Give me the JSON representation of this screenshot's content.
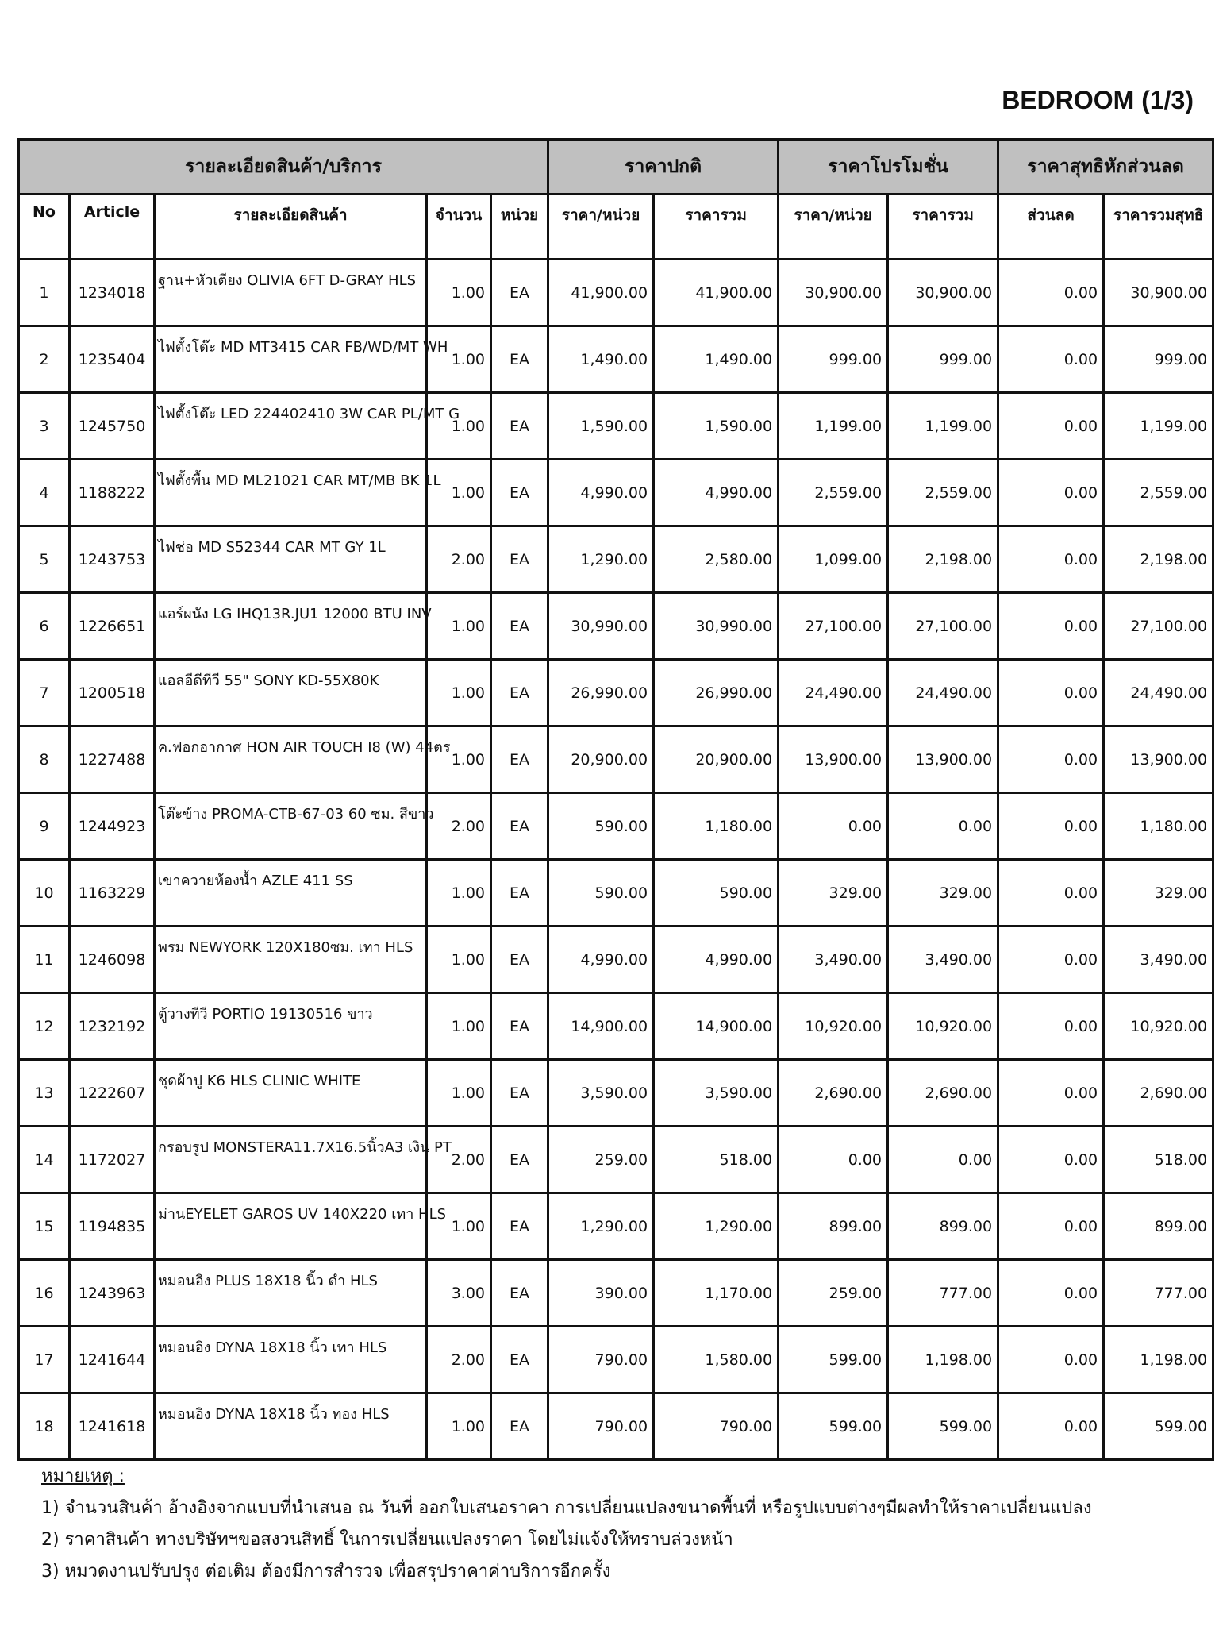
{
  "title": "BEDROOM (1/3)",
  "groups": [
    "รายละเอียดสินค้า/บริการ",
    "ราคาปกติ",
    "ราคาโปรโมชั่น",
    "ราคาสุทธิหักส่วนลด"
  ],
  "columns": [
    "No",
    "Article",
    "รายละเอียดสินค้า",
    "จำนวน",
    "หน่วย",
    "ราคา/หน่วย",
    "ราคารวม",
    "ราคา/หน่วย",
    "ราคารวม",
    "ส่วนลด",
    "ราคารวมสุทธิ"
  ],
  "rows": [
    [
      "1",
      "1234018",
      "ฐาน+หัวเตียง OLIVIA 6FT D-GRAY HLS",
      "1.00",
      "EA",
      "41,900.00",
      "41,900.00",
      "30,900.00",
      "30,900.00",
      "0.00",
      "30,900.00"
    ],
    [
      "2",
      "1235404",
      "ไฟตั้งโต๊ะ MD MT3415 CAR FB/WD/MT WH",
      "1.00",
      "EA",
      "1,490.00",
      "1,490.00",
      "999.00",
      "999.00",
      "0.00",
      "999.00"
    ],
    [
      "3",
      "1245750",
      "ไฟตั้งโต๊ะ LED 224402410 3W CAR PL/MT G",
      "1.00",
      "EA",
      "1,590.00",
      "1,590.00",
      "1,199.00",
      "1,199.00",
      "0.00",
      "1,199.00"
    ],
    [
      "4",
      "1188222",
      "ไฟตั้งพื้น MD ML21021 CAR MT/MB BK 1L",
      "1.00",
      "EA",
      "4,990.00",
      "4,990.00",
      "2,559.00",
      "2,559.00",
      "0.00",
      "2,559.00"
    ],
    [
      "5",
      "1243753",
      "ไฟช่อ MD S52344 CAR MT GY 1L",
      "2.00",
      "EA",
      "1,290.00",
      "2,580.00",
      "1,099.00",
      "2,198.00",
      "0.00",
      "2,198.00"
    ],
    [
      "6",
      "1226651",
      "แอร์ผนัง LG IHQ13R.JU1 12000 BTU INV",
      "1.00",
      "EA",
      "30,990.00",
      "30,990.00",
      "27,100.00",
      "27,100.00",
      "0.00",
      "27,100.00"
    ],
    [
      "7",
      "1200518",
      "แอลอีดีทีวี 55\" SONY KD-55X80K",
      "1.00",
      "EA",
      "26,990.00",
      "26,990.00",
      "24,490.00",
      "24,490.00",
      "0.00",
      "24,490.00"
    ],
    [
      "8",
      "1227488",
      "ค.ฟอกอากาศ HON AIR TOUCH I8 (W) 44ตร",
      "1.00",
      "EA",
      "20,900.00",
      "20,900.00",
      "13,900.00",
      "13,900.00",
      "0.00",
      "13,900.00"
    ],
    [
      "9",
      "1244923",
      "โต๊ะข้าง PROMA-CTB-67-03 60 ซม. สีขาว",
      "2.00",
      "EA",
      "590.00",
      "1,180.00",
      "0.00",
      "0.00",
      "0.00",
      "1,180.00"
    ],
    [
      "10",
      "1163229",
      "เขาควายห้องน้ำ AZLE 411 SS",
      "1.00",
      "EA",
      "590.00",
      "590.00",
      "329.00",
      "329.00",
      "0.00",
      "329.00"
    ],
    [
      "11",
      "1246098",
      "พรม NEWYORK 120X180ซม. เทา HLS",
      "1.00",
      "EA",
      "4,990.00",
      "4,990.00",
      "3,490.00",
      "3,490.00",
      "0.00",
      "3,490.00"
    ],
    [
      "12",
      "1232192",
      "ตู้วางทีวี PORTIO 19130516 ขาว",
      "1.00",
      "EA",
      "14,900.00",
      "14,900.00",
      "10,920.00",
      "10,920.00",
      "0.00",
      "10,920.00"
    ],
    [
      "13",
      "1222607",
      "ชุดผ้าปู K6 HLS CLINIC WHITE",
      "1.00",
      "EA",
      "3,590.00",
      "3,590.00",
      "2,690.00",
      "2,690.00",
      "0.00",
      "2,690.00"
    ],
    [
      "14",
      "1172027",
      "กรอบรูป MONSTERA11.7X16.5นิ้วA3 เงิน PT",
      "2.00",
      "EA",
      "259.00",
      "518.00",
      "0.00",
      "0.00",
      "0.00",
      "518.00"
    ],
    [
      "15",
      "1194835",
      "ม่านEYELET GAROS UV 140X220 เทา HLS",
      "1.00",
      "EA",
      "1,290.00",
      "1,290.00",
      "899.00",
      "899.00",
      "0.00",
      "899.00"
    ],
    [
      "16",
      "1243963",
      "หมอนอิง PLUS 18X18 นิ้ว ดำ HLS",
      "3.00",
      "EA",
      "390.00",
      "1,170.00",
      "259.00",
      "777.00",
      "0.00",
      "777.00"
    ],
    [
      "17",
      "1241644",
      "หมอนอิง DYNA 18X18 นิ้ว เทา HLS",
      "2.00",
      "EA",
      "790.00",
      "1,580.00",
      "599.00",
      "1,198.00",
      "0.00",
      "1,198.00"
    ],
    [
      "18",
      "1241618",
      "หมอนอิง DYNA 18X18 นิ้ว ทอง HLS",
      "1.00",
      "EA",
      "790.00",
      "790.00",
      "599.00",
      "599.00",
      "0.00",
      "599.00"
    ]
  ],
  "notes": {
    "heading": "หมายเหตุ :",
    "items": [
      "1) จำนวนสินค้า อ้างอิงจากแบบที่นำเสนอ ณ วันที่ ออกใบเสนอราคา การเปลี่ยนแปลงขนาดพื้นที่ หรือรูปแบบต่างๆมีผลทำให้ราคาเปลี่ยนแปลง",
      "2) ราคาสินค้า ทางบริษัทฯขอสงวนสิทธิ์ ในการเปลี่ยนแปลงราคา โดยไม่แจ้งให้ทราบล่วงหน้า",
      "3) หมวดงานปรับปรุง ต่อเติม ต้องมีการสำรวจ เพื่อสรุปราคาค่าบริการอีกครั้ง"
    ]
  },
  "colors": {
    "header_bg": "#c0c0c0",
    "border": "#111111"
  }
}
